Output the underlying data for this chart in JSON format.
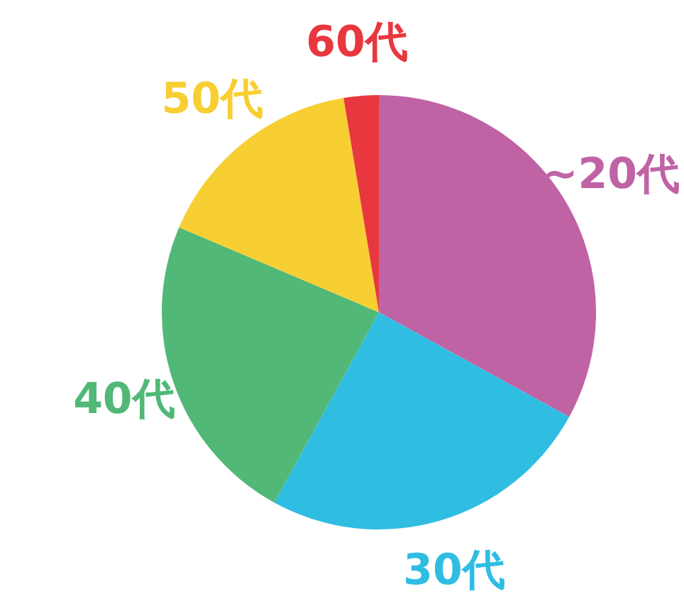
{
  "chart_data": {
    "type": "pie",
    "categories": [
      "~20代",
      "30代",
      "40代",
      "50代",
      "60代"
    ],
    "values": [
      33,
      25,
      23.4,
      16,
      2.6
    ],
    "colors": [
      "#bf63a5",
      "#2fbde2",
      "#51b877",
      "#f7cf33",
      "#e8373e"
    ]
  }
}
